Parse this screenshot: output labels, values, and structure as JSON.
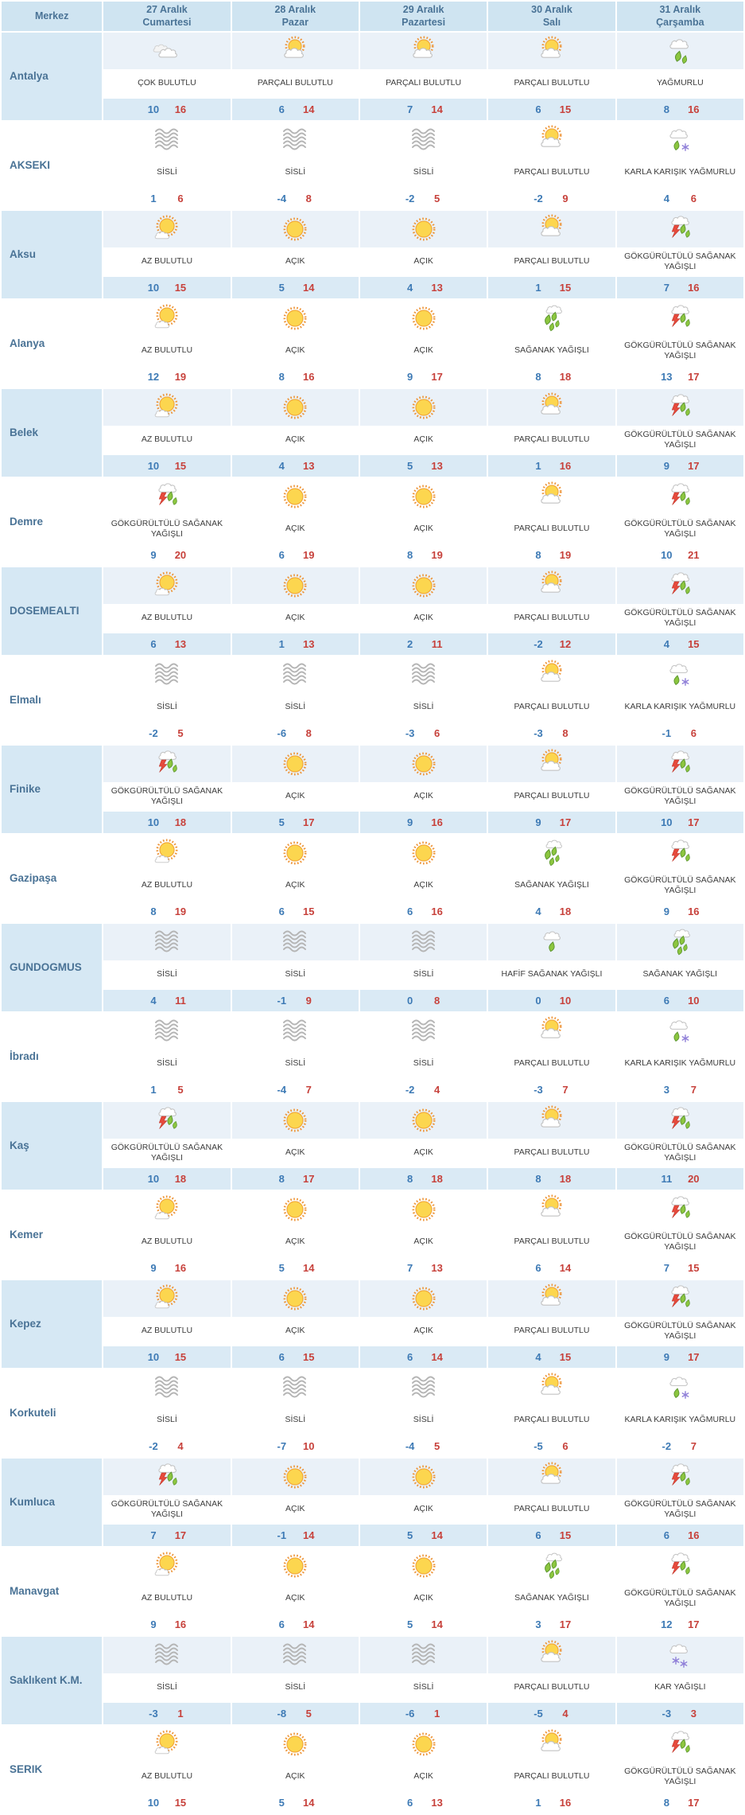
{
  "table": {
    "header": {
      "merkez_label": "Merkez",
      "days": [
        {
          "date": "27 Aralık",
          "day": "Cumartesi"
        },
        {
          "date": "28 Aralık",
          "day": "Pazar"
        },
        {
          "date": "29 Aralık",
          "day": "Pazartesi"
        },
        {
          "date": "30 Aralık",
          "day": "Salı"
        },
        {
          "date": "31 Aralık",
          "day": "Çarşamba"
        }
      ]
    },
    "rows": [
      {
        "city": "Antalya",
        "cells": [
          {
            "icon": "cloudy",
            "cond": "ÇOK BULUTLU",
            "min": 10,
            "max": 16
          },
          {
            "icon": "partly-cloudy",
            "cond": "PARÇALI BULUTLU",
            "min": 6,
            "max": 14
          },
          {
            "icon": "partly-cloudy",
            "cond": "PARÇALI BULUTLU",
            "min": 7,
            "max": 14
          },
          {
            "icon": "partly-cloudy",
            "cond": "PARÇALI BULUTLU",
            "min": 6,
            "max": 15
          },
          {
            "icon": "rain",
            "cond": "YAĞMURLU",
            "min": 8,
            "max": 16
          }
        ]
      },
      {
        "city": "AKSEKI",
        "cells": [
          {
            "icon": "fog",
            "cond": "SİSLİ",
            "min": 1,
            "max": 6
          },
          {
            "icon": "fog",
            "cond": "SİSLİ",
            "min": -4,
            "max": 8
          },
          {
            "icon": "fog",
            "cond": "SİSLİ",
            "min": -2,
            "max": 5
          },
          {
            "icon": "partly-cloudy",
            "cond": "PARÇALI BULUTLU",
            "min": -2,
            "max": 9
          },
          {
            "icon": "sleet",
            "cond": "KARLA KARIŞIK YAĞMURLU",
            "min": 4,
            "max": 6
          }
        ]
      },
      {
        "city": "Aksu",
        "cells": [
          {
            "icon": "mostly-sunny",
            "cond": "AZ BULUTLU",
            "min": 10,
            "max": 15
          },
          {
            "icon": "sunny",
            "cond": "AÇIK",
            "min": 5,
            "max": 14
          },
          {
            "icon": "sunny",
            "cond": "AÇIK",
            "min": 4,
            "max": 13
          },
          {
            "icon": "partly-cloudy",
            "cond": "PARÇALI BULUTLU",
            "min": 1,
            "max": 15
          },
          {
            "icon": "thunderstorm",
            "cond": "GÖKGÜRÜLTÜLÜ SAĞANAK YAĞIŞLI",
            "min": 7,
            "max": 16
          }
        ]
      },
      {
        "city": "Alanya",
        "cells": [
          {
            "icon": "mostly-sunny",
            "cond": "AZ BULUTLU",
            "min": 12,
            "max": 19
          },
          {
            "icon": "sunny",
            "cond": "AÇIK",
            "min": 8,
            "max": 16
          },
          {
            "icon": "sunny",
            "cond": "AÇIK",
            "min": 9,
            "max": 17
          },
          {
            "icon": "showers",
            "cond": "SAĞANAK YAĞIŞLI",
            "min": 8,
            "max": 18
          },
          {
            "icon": "thunderstorm",
            "cond": "GÖKGÜRÜLTÜLÜ SAĞANAK YAĞIŞLI",
            "min": 13,
            "max": 17
          }
        ]
      },
      {
        "city": "Belek",
        "cells": [
          {
            "icon": "mostly-sunny",
            "cond": "AZ BULUTLU",
            "min": 10,
            "max": 15
          },
          {
            "icon": "sunny",
            "cond": "AÇIK",
            "min": 4,
            "max": 13
          },
          {
            "icon": "sunny",
            "cond": "AÇIK",
            "min": 5,
            "max": 13
          },
          {
            "icon": "partly-cloudy",
            "cond": "PARÇALI BULUTLU",
            "min": 1,
            "max": 16
          },
          {
            "icon": "thunderstorm",
            "cond": "GÖKGÜRÜLTÜLÜ SAĞANAK YAĞIŞLI",
            "min": 9,
            "max": 17
          }
        ]
      },
      {
        "city": "Demre",
        "cells": [
          {
            "icon": "thunderstorm",
            "cond": "GÖKGÜRÜLTÜLÜ SAĞANAK YAĞIŞLI",
            "min": 9,
            "max": 20
          },
          {
            "icon": "sunny",
            "cond": "AÇIK",
            "min": 6,
            "max": 19
          },
          {
            "icon": "sunny",
            "cond": "AÇIK",
            "min": 8,
            "max": 19
          },
          {
            "icon": "partly-cloudy",
            "cond": "PARÇALI BULUTLU",
            "min": 8,
            "max": 19
          },
          {
            "icon": "thunderstorm",
            "cond": "GÖKGÜRÜLTÜLÜ SAĞANAK YAĞIŞLI",
            "min": 10,
            "max": 21
          }
        ]
      },
      {
        "city": "DOSEMEALTI",
        "cells": [
          {
            "icon": "mostly-sunny",
            "cond": "AZ BULUTLU",
            "min": 6,
            "max": 13
          },
          {
            "icon": "sunny",
            "cond": "AÇIK",
            "min": 1,
            "max": 13
          },
          {
            "icon": "sunny",
            "cond": "AÇIK",
            "min": 2,
            "max": 11
          },
          {
            "icon": "partly-cloudy",
            "cond": "PARÇALI BULUTLU",
            "min": -2,
            "max": 12
          },
          {
            "icon": "thunderstorm",
            "cond": "GÖKGÜRÜLTÜLÜ SAĞANAK YAĞIŞLI",
            "min": 4,
            "max": 15
          }
        ]
      },
      {
        "city": "Elmalı",
        "cells": [
          {
            "icon": "fog",
            "cond": "SİSLİ",
            "min": -2,
            "max": 5
          },
          {
            "icon": "fog",
            "cond": "SİSLİ",
            "min": -6,
            "max": 8
          },
          {
            "icon": "fog",
            "cond": "SİSLİ",
            "min": -3,
            "max": 6
          },
          {
            "icon": "partly-cloudy",
            "cond": "PARÇALI BULUTLU",
            "min": -3,
            "max": 8
          },
          {
            "icon": "sleet",
            "cond": "KARLA KARIŞIK YAĞMURLU",
            "min": -1,
            "max": 6
          }
        ]
      },
      {
        "city": "Finike",
        "cells": [
          {
            "icon": "thunderstorm",
            "cond": "GÖKGÜRÜLTÜLÜ SAĞANAK YAĞIŞLI",
            "min": 10,
            "max": 18
          },
          {
            "icon": "sunny",
            "cond": "AÇIK",
            "min": 5,
            "max": 17
          },
          {
            "icon": "sunny",
            "cond": "AÇIK",
            "min": 9,
            "max": 16
          },
          {
            "icon": "partly-cloudy",
            "cond": "PARÇALI BULUTLU",
            "min": 9,
            "max": 17
          },
          {
            "icon": "thunderstorm",
            "cond": "GÖKGÜRÜLTÜLÜ SAĞANAK YAĞIŞLI",
            "min": 10,
            "max": 17
          }
        ]
      },
      {
        "city": "Gazipaşa",
        "cells": [
          {
            "icon": "mostly-sunny",
            "cond": "AZ BULUTLU",
            "min": 8,
            "max": 19
          },
          {
            "icon": "sunny",
            "cond": "AÇIK",
            "min": 6,
            "max": 15
          },
          {
            "icon": "sunny",
            "cond": "AÇIK",
            "min": 6,
            "max": 16
          },
          {
            "icon": "showers",
            "cond": "SAĞANAK YAĞIŞLI",
            "min": 4,
            "max": 18
          },
          {
            "icon": "thunderstorm",
            "cond": "GÖKGÜRÜLTÜLÜ SAĞANAK YAĞIŞLI",
            "min": 9,
            "max": 16
          }
        ]
      },
      {
        "city": "GUNDOGMUS",
        "cells": [
          {
            "icon": "fog",
            "cond": "SİSLİ",
            "min": 4,
            "max": 11
          },
          {
            "icon": "fog",
            "cond": "SİSLİ",
            "min": -1,
            "max": 9
          },
          {
            "icon": "fog",
            "cond": "SİSLİ",
            "min": 0,
            "max": 8
          },
          {
            "icon": "light-showers",
            "cond": "HAFİF SAĞANAK YAĞIŞLI",
            "min": 0,
            "max": 10
          },
          {
            "icon": "showers",
            "cond": "SAĞANAK YAĞIŞLI",
            "min": 6,
            "max": 10
          }
        ]
      },
      {
        "city": "İbradı",
        "cells": [
          {
            "icon": "fog",
            "cond": "SİSLİ",
            "min": 1,
            "max": 5
          },
          {
            "icon": "fog",
            "cond": "SİSLİ",
            "min": -4,
            "max": 7
          },
          {
            "icon": "fog",
            "cond": "SİSLİ",
            "min": -2,
            "max": 4
          },
          {
            "icon": "partly-cloudy",
            "cond": "PARÇALI BULUTLU",
            "min": -3,
            "max": 7
          },
          {
            "icon": "sleet",
            "cond": "KARLA KARIŞIK YAĞMURLU",
            "min": 3,
            "max": 7
          }
        ]
      },
      {
        "city": "Kaş",
        "cells": [
          {
            "icon": "thunderstorm",
            "cond": "GÖKGÜRÜLTÜLÜ SAĞANAK YAĞIŞLI",
            "min": 10,
            "max": 18
          },
          {
            "icon": "sunny",
            "cond": "AÇIK",
            "min": 8,
            "max": 17
          },
          {
            "icon": "sunny",
            "cond": "AÇIK",
            "min": 8,
            "max": 18
          },
          {
            "icon": "partly-cloudy",
            "cond": "PARÇALI BULUTLU",
            "min": 8,
            "max": 18
          },
          {
            "icon": "thunderstorm",
            "cond": "GÖKGÜRÜLTÜLÜ SAĞANAK YAĞIŞLI",
            "min": 11,
            "max": 20
          }
        ]
      },
      {
        "city": "Kemer",
        "cells": [
          {
            "icon": "mostly-sunny",
            "cond": "AZ BULUTLU",
            "min": 9,
            "max": 16
          },
          {
            "icon": "sunny",
            "cond": "AÇIK",
            "min": 5,
            "max": 14
          },
          {
            "icon": "sunny",
            "cond": "AÇIK",
            "min": 7,
            "max": 13
          },
          {
            "icon": "partly-cloudy",
            "cond": "PARÇALI BULUTLU",
            "min": 6,
            "max": 14
          },
          {
            "icon": "thunderstorm",
            "cond": "GÖKGÜRÜLTÜLÜ SAĞANAK YAĞIŞLI",
            "min": 7,
            "max": 15
          }
        ]
      },
      {
        "city": "Kepez",
        "cells": [
          {
            "icon": "mostly-sunny",
            "cond": "AZ BULUTLU",
            "min": 10,
            "max": 15
          },
          {
            "icon": "sunny",
            "cond": "AÇIK",
            "min": 6,
            "max": 15
          },
          {
            "icon": "sunny",
            "cond": "AÇIK",
            "min": 6,
            "max": 14
          },
          {
            "icon": "partly-cloudy",
            "cond": "PARÇALI BULUTLU",
            "min": 4,
            "max": 15
          },
          {
            "icon": "thunderstorm",
            "cond": "GÖKGÜRÜLTÜLÜ SAĞANAK YAĞIŞLI",
            "min": 9,
            "max": 17
          }
        ]
      },
      {
        "city": "Korkuteli",
        "cells": [
          {
            "icon": "fog",
            "cond": "SİSLİ",
            "min": -2,
            "max": 4
          },
          {
            "icon": "fog",
            "cond": "SİSLİ",
            "min": -7,
            "max": 10
          },
          {
            "icon": "fog",
            "cond": "SİSLİ",
            "min": -4,
            "max": 5
          },
          {
            "icon": "partly-cloudy",
            "cond": "PARÇALI BULUTLU",
            "min": -5,
            "max": 6
          },
          {
            "icon": "sleet",
            "cond": "KARLA KARIŞIK YAĞMURLU",
            "min": -2,
            "max": 7
          }
        ]
      },
      {
        "city": "Kumluca",
        "cells": [
          {
            "icon": "thunderstorm",
            "cond": "GÖKGÜRÜLTÜLÜ SAĞANAK YAĞIŞLI",
            "min": 7,
            "max": 17
          },
          {
            "icon": "sunny",
            "cond": "AÇIK",
            "min": -1,
            "max": 14
          },
          {
            "icon": "sunny",
            "cond": "AÇIK",
            "min": 5,
            "max": 14
          },
          {
            "icon": "partly-cloudy",
            "cond": "PARÇALI BULUTLU",
            "min": 6,
            "max": 15
          },
          {
            "icon": "thunderstorm",
            "cond": "GÖKGÜRÜLTÜLÜ SAĞANAK YAĞIŞLI",
            "min": 6,
            "max": 16
          }
        ]
      },
      {
        "city": "Manavgat",
        "cells": [
          {
            "icon": "mostly-sunny",
            "cond": "AZ BULUTLU",
            "min": 9,
            "max": 16
          },
          {
            "icon": "sunny",
            "cond": "AÇIK",
            "min": 6,
            "max": 14
          },
          {
            "icon": "sunny",
            "cond": "AÇIK",
            "min": 5,
            "max": 14
          },
          {
            "icon": "showers",
            "cond": "SAĞANAK YAĞIŞLI",
            "min": 3,
            "max": 17
          },
          {
            "icon": "thunderstorm",
            "cond": "GÖKGÜRÜLTÜLÜ SAĞANAK YAĞIŞLI",
            "min": 12,
            "max": 17
          }
        ]
      },
      {
        "city": "Saklıkent K.M.",
        "cells": [
          {
            "icon": "fog",
            "cond": "SİSLİ",
            "min": -3,
            "max": 1
          },
          {
            "icon": "fog",
            "cond": "SİSLİ",
            "min": -8,
            "max": 5
          },
          {
            "icon": "fog",
            "cond": "SİSLİ",
            "min": -6,
            "max": 1
          },
          {
            "icon": "partly-cloudy",
            "cond": "PARÇALI BULUTLU",
            "min": -5,
            "max": 4
          },
          {
            "icon": "snow",
            "cond": "KAR YAĞIŞLI",
            "min": -3,
            "max": 3
          }
        ]
      },
      {
        "city": "SERIK",
        "cells": [
          {
            "icon": "mostly-sunny",
            "cond": "AZ BULUTLU",
            "min": 10,
            "max": 15
          },
          {
            "icon": "sunny",
            "cond": "AÇIK",
            "min": 5,
            "max": 14
          },
          {
            "icon": "sunny",
            "cond": "AÇIK",
            "min": 6,
            "max": 13
          },
          {
            "icon": "partly-cloudy",
            "cond": "PARÇALI BULUTLU",
            "min": 1,
            "max": 16
          },
          {
            "icon": "thunderstorm",
            "cond": "GÖKGÜRÜLTÜLÜ SAĞANAK YAĞIŞLI",
            "min": 8,
            "max": 17
          }
        ]
      }
    ]
  },
  "colors": {
    "header_bg": "#cfe4f1",
    "shaded_bg": "#d6e8f4",
    "icon_band_bg": "#eaf1f8",
    "temp_band_bg": "#daeaf5",
    "label_color": "#4a7396",
    "min_temp_color": "#3d7ab5",
    "max_temp_color": "#c7413b",
    "condition_color": "#3c3c3c"
  }
}
